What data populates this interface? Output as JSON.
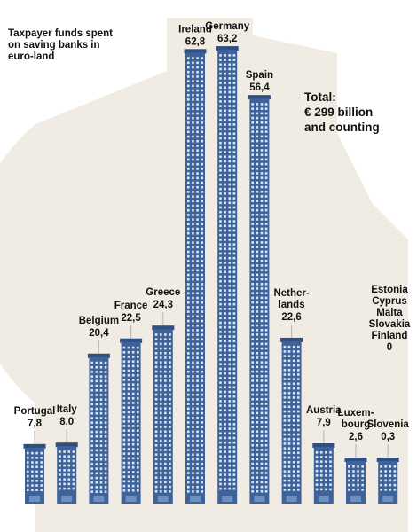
{
  "chart_data": {
    "type": "bar",
    "title": "Taxpayer funds spent on saving banks in euro-land",
    "categories": [
      "Portugal",
      "Italy",
      "Belgium",
      "France",
      "Greece",
      "Ireland",
      "Germany",
      "Spain",
      "Nether-lands",
      "Austria",
      "Luxem-bourg",
      "Slovenia"
    ],
    "values": [
      7.8,
      8.0,
      20.4,
      22.5,
      24.3,
      62.8,
      63.2,
      56.4,
      22.6,
      7.9,
      2.6,
      0.3
    ],
    "value_labels": [
      "7,8",
      "8,0",
      "20,4",
      "22,5",
      "24,3",
      "62,8",
      "63,2",
      "56,4",
      "22,6",
      "7,9",
      "2,6",
      "0,3"
    ],
    "total_annotation": "Total:\n€ 299 billion\nand counting",
    "zero_countries_annotation": "Estonia\nCyprus\nMalta\nSlovakia\nFinland\n0",
    "bar_style": "skyscraper",
    "grid": false,
    "legend": "none",
    "colors": {
      "bar": "#3e639a",
      "bar_dark": "#2f4f80",
      "window": "#dce6f2",
      "background_shape": "#f1ece3",
      "leader": "#bcbcbc",
      "text": "#111111"
    }
  }
}
